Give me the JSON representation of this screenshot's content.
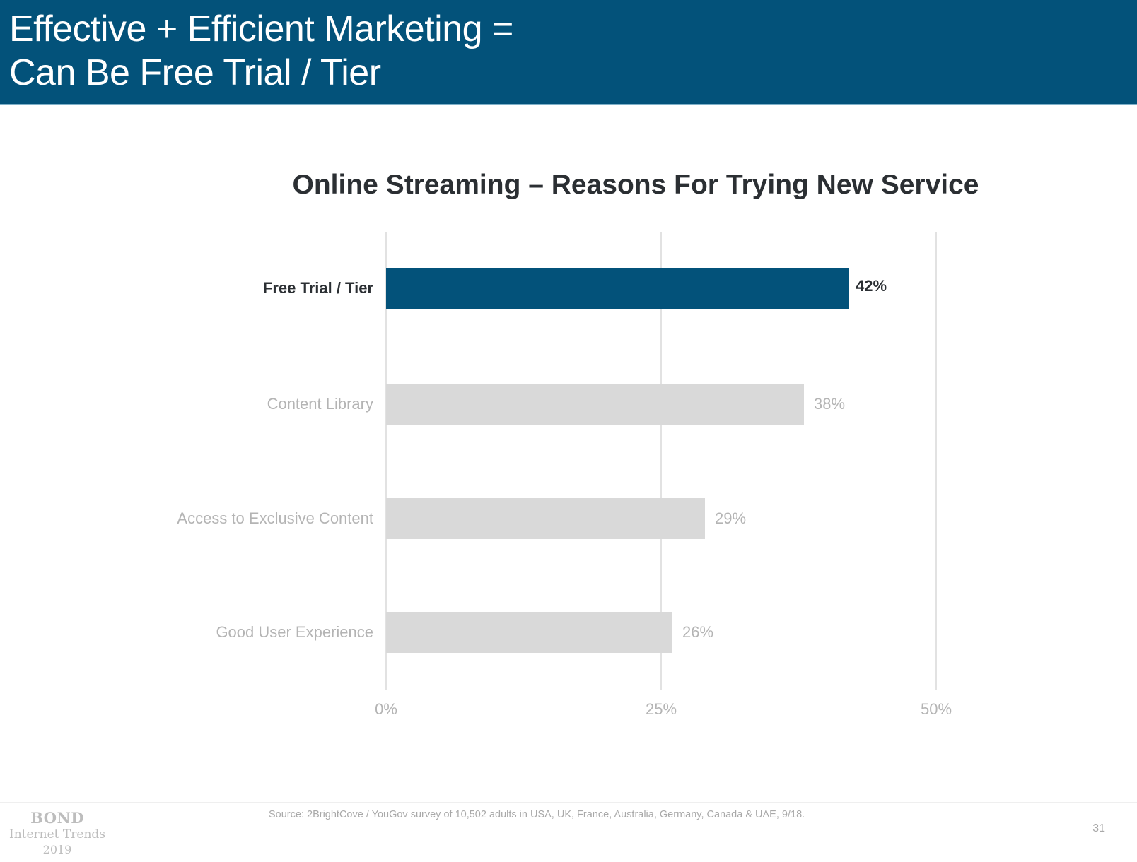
{
  "header": {
    "title_line1": "Effective + Efficient Marketing =",
    "title_line2": "Can Be Free Trial / Tier"
  },
  "colors": {
    "header_bg": "#03527a",
    "highlight_bar": "#03527a",
    "other_bars": "#d9d9d9"
  },
  "chart_data": {
    "type": "bar",
    "orientation": "horizontal",
    "title": "Online Streaming – Reasons For Trying New Service",
    "categories": [
      "Free Trial / Tier",
      "Content Library",
      "Access to Exclusive Content",
      "Good User Experience"
    ],
    "values": [
      42,
      38,
      29,
      26
    ],
    "value_labels": [
      "42%",
      "38%",
      "29%",
      "26%"
    ],
    "highlighted_category": "Free Trial / Tier",
    "xlabel": "",
    "ylabel": "",
    "xlim": [
      0,
      50
    ],
    "x_ticks": [
      "0%",
      "25%",
      "50%"
    ],
    "grid": true,
    "legend": null
  },
  "footer": {
    "logo_line1": "BOND",
    "logo_line2": "Internet Trends",
    "logo_line3": "2019",
    "source": "Source: 2BrightCove / YouGov survey of 10,502 adults in USA, UK, France, Australia, Germany, Canada & UAE, 9/18.",
    "page_number": "31"
  }
}
